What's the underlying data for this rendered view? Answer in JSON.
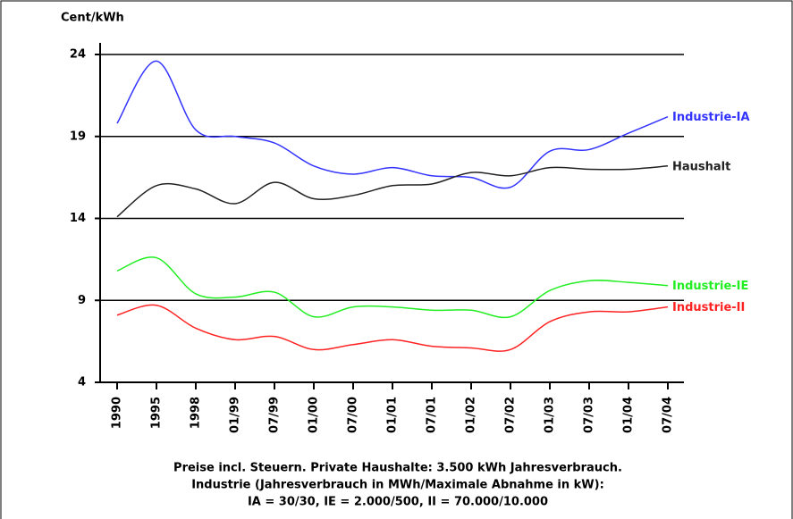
{
  "chart_data": {
    "type": "line",
    "y_label": "Cent/kWh",
    "categories": [
      "1990",
      "1995",
      "1998",
      "01/99",
      "07/99",
      "01/00",
      "07/00",
      "01/01",
      "07/01",
      "01/02",
      "07/02",
      "01/03",
      "07/03",
      "01/04",
      "07/04"
    ],
    "series": [
      {
        "name": "Industrie-IA",
        "color": "#3333ff",
        "values": [
          19.8,
          23.6,
          19.4,
          19.0,
          18.6,
          17.2,
          16.7,
          17.1,
          16.6,
          16.5,
          15.9,
          18.1,
          18.2,
          19.2,
          20.2
        ]
      },
      {
        "name": "Haushalt",
        "color": "#222222",
        "values": [
          14.1,
          16.0,
          15.8,
          14.9,
          16.2,
          15.2,
          15.4,
          16.0,
          16.1,
          16.8,
          16.6,
          17.1,
          17.0,
          17.0,
          17.2
        ]
      },
      {
        "name": "Industrie-IE",
        "color": "#22ee22",
        "values": [
          10.8,
          11.6,
          9.4,
          9.2,
          9.5,
          8.0,
          8.6,
          8.6,
          8.4,
          8.4,
          8.0,
          9.6,
          10.2,
          10.1,
          9.9
        ]
      },
      {
        "name": "Industrie-II",
        "color": "#ff2222",
        "values": [
          8.1,
          8.7,
          7.3,
          6.6,
          6.8,
          6.0,
          6.3,
          6.6,
          6.2,
          6.1,
          6.0,
          7.7,
          8.3,
          8.3,
          8.6
        ]
      }
    ],
    "ylim": [
      4,
      24
    ],
    "yticks": [
      4,
      9,
      14,
      19,
      24
    ],
    "grid": true,
    "notes": [
      "Preise incl. Steuern. Private Haushalte: 3.500 kWh Jahresverbrauch.",
      "Industrie (Jahresverbrauch in MWh/Maximale Abnahme in kW):",
      "IA = 30/30, IE = 2.000/500, II = 70.000/10.000"
    ]
  }
}
